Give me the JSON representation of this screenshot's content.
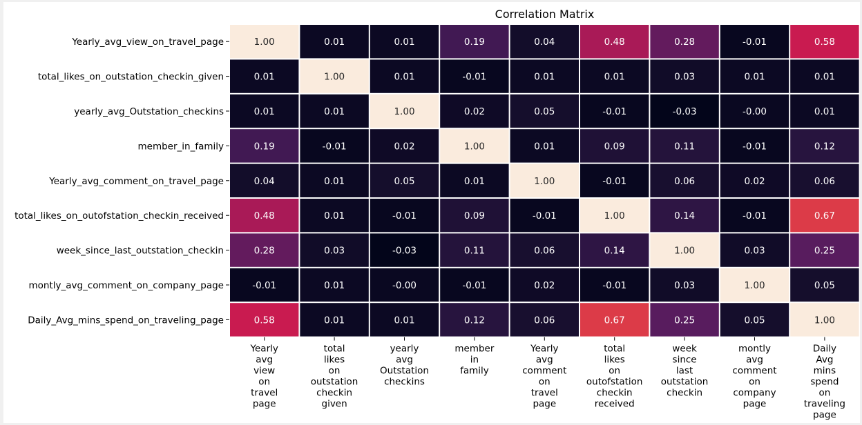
{
  "chart_data": {
    "type": "heatmap",
    "title": "Correlation Matrix",
    "row_labels": [
      "Yearly_avg_view_on_travel_page",
      "total_likes_on_outstation_checkin_given",
      "yearly_avg_Outstation_checkins",
      "member_in_family",
      "Yearly_avg_comment_on_travel_page",
      "total_likes_on_outofstation_checkin_received",
      "week_since_last_outstation_checkin",
      "montly_avg_comment_on_company_page",
      "Daily_Avg_mins_spend_on_traveling_page"
    ],
    "column_labels": [
      [
        "Yearly",
        "avg",
        "view",
        "on",
        "travel",
        "page"
      ],
      [
        "total",
        "likes",
        "on",
        "outstation",
        "checkin",
        "given"
      ],
      [
        "yearly",
        "avg",
        "Outstation",
        "checkins"
      ],
      [
        "member",
        "in",
        "family"
      ],
      [
        "Yearly",
        "avg",
        "comment",
        "on",
        "travel",
        "page"
      ],
      [
        "total",
        "likes",
        "on",
        "outofstation",
        "checkin",
        "received"
      ],
      [
        "week",
        "since",
        "last",
        "outstation",
        "checkin"
      ],
      [
        "montly",
        "avg",
        "comment",
        "on",
        "company",
        "page"
      ],
      [
        "Daily",
        "Avg",
        "mins",
        "spend",
        "on",
        "traveling",
        "page"
      ]
    ],
    "values": [
      [
        "1.00",
        "0.01",
        "0.01",
        "0.19",
        "0.04",
        "0.48",
        "0.28",
        "-0.01",
        "0.58"
      ],
      [
        "0.01",
        "1.00",
        "0.01",
        "-0.01",
        "0.01",
        "0.01",
        "0.03",
        "0.01",
        "0.01"
      ],
      [
        "0.01",
        "0.01",
        "1.00",
        "0.02",
        "0.05",
        "-0.01",
        "-0.03",
        "-0.00",
        "0.01"
      ],
      [
        "0.19",
        "-0.01",
        "0.02",
        "1.00",
        "0.01",
        "0.09",
        "0.11",
        "-0.01",
        "0.12"
      ],
      [
        "0.04",
        "0.01",
        "0.05",
        "0.01",
        "1.00",
        "-0.01",
        "0.06",
        "0.02",
        "0.06"
      ],
      [
        "0.48",
        "0.01",
        "-0.01",
        "0.09",
        "-0.01",
        "1.00",
        "0.14",
        "-0.01",
        "0.67"
      ],
      [
        "0.28",
        "0.03",
        "-0.03",
        "0.11",
        "0.06",
        "0.14",
        "1.00",
        "0.03",
        "0.25"
      ],
      [
        "-0.01",
        "0.01",
        "-0.00",
        "-0.01",
        "0.02",
        "-0.01",
        "0.03",
        "1.00",
        "0.05"
      ],
      [
        "0.58",
        "0.01",
        "0.01",
        "0.12",
        "0.06",
        "0.67",
        "0.25",
        "0.05",
        "1.00"
      ]
    ],
    "colorscale": "rocket",
    "vmin": -0.03,
    "vmax": 1.0,
    "grid": false,
    "legend": "none"
  }
}
